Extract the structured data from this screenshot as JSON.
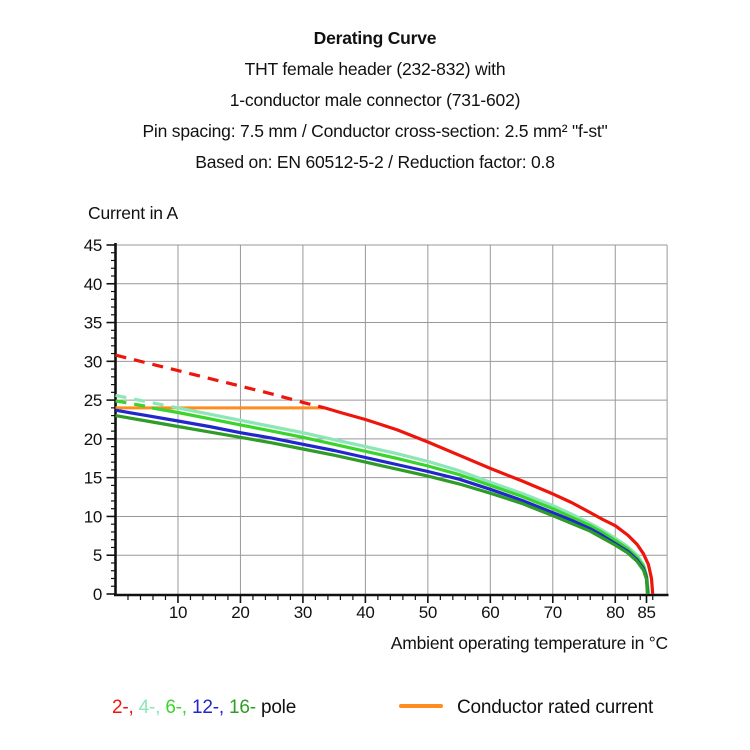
{
  "title_lines": [
    "Derating Curve",
    "THT female header (232-832) with",
    "1-conductor male connector (731-602)",
    "Pin spacing: 7.5 mm / Conductor cross-section: 2.5 mm² \"f-st\"",
    "Based on: EN 60512-5-2 / Reduction factor: 0.8"
  ],
  "chart_data": {
    "type": "line",
    "title": "Derating Curve",
    "ylabel": "Current in A",
    "xlabel": "Ambient operating temperature in °C",
    "x_ticks": [
      10,
      20,
      30,
      40,
      50,
      60,
      70,
      80,
      85
    ],
    "y_ticks": [
      0,
      5,
      10,
      15,
      20,
      25,
      30,
      35,
      40,
      45
    ],
    "xlim": [
      0,
      88.3
    ],
    "ylim": [
      0,
      45
    ],
    "grid": true,
    "grid_color": "#999999",
    "rated_current": {
      "value": 24,
      "x_from": 0,
      "x_to": 33.5,
      "color": "#ff8d1e",
      "label": "Conductor rated current"
    },
    "series": [
      {
        "name": "2-pole",
        "color": "#ee150c",
        "dashed_until": 33.5,
        "points": [
          [
            0,
            30.8
          ],
          [
            5,
            29.8
          ],
          [
            10,
            28.8
          ],
          [
            15,
            27.8
          ],
          [
            20,
            26.8
          ],
          [
            25,
            25.8
          ],
          [
            30,
            24.7
          ],
          [
            33.5,
            24
          ],
          [
            36,
            23.4
          ],
          [
            40,
            22.5
          ],
          [
            45,
            21.2
          ],
          [
            50,
            19.6
          ],
          [
            55,
            17.9
          ],
          [
            60,
            16.2
          ],
          [
            65,
            14.6
          ],
          [
            70,
            12.9
          ],
          [
            73,
            11.8
          ],
          [
            76,
            10.5
          ],
          [
            78,
            9.6
          ],
          [
            80,
            8.8
          ],
          [
            82,
            7.6
          ],
          [
            83.5,
            6.4
          ],
          [
            84.5,
            5.2
          ],
          [
            85.3,
            3.8
          ],
          [
            85.8,
            2.0
          ],
          [
            86,
            0
          ]
        ]
      },
      {
        "name": "4-pole",
        "color": "#8ce6b8",
        "dashed_until": 10,
        "points": [
          [
            0,
            25.6
          ],
          [
            5,
            24.8
          ],
          [
            10,
            24.0
          ],
          [
            15,
            23.2
          ],
          [
            20,
            22.4
          ],
          [
            25,
            21.6
          ],
          [
            30,
            20.8
          ],
          [
            35,
            19.9
          ],
          [
            40,
            19.0
          ],
          [
            45,
            18.1
          ],
          [
            50,
            17.1
          ],
          [
            55,
            15.9
          ],
          [
            60,
            14.4
          ],
          [
            65,
            13.0
          ],
          [
            70,
            11.4
          ],
          [
            73,
            10.3
          ],
          [
            76,
            9.1
          ],
          [
            78,
            8.2
          ],
          [
            80,
            7.2
          ],
          [
            82,
            6.1
          ],
          [
            83.5,
            5.0
          ],
          [
            84.5,
            3.8
          ],
          [
            85,
            2.5
          ],
          [
            85.35,
            0
          ]
        ]
      },
      {
        "name": "6-pole",
        "color": "#3bd42c",
        "dashed_until": 5.8,
        "points": [
          [
            0,
            24.9
          ],
          [
            5,
            24.2
          ],
          [
            5.8,
            24.0
          ],
          [
            10,
            23.4
          ],
          [
            15,
            22.6
          ],
          [
            20,
            21.8
          ],
          [
            25,
            21.0
          ],
          [
            30,
            20.2
          ],
          [
            35,
            19.3
          ],
          [
            40,
            18.4
          ],
          [
            45,
            17.5
          ],
          [
            50,
            16.5
          ],
          [
            55,
            15.4
          ],
          [
            60,
            14.0
          ],
          [
            65,
            12.6
          ],
          [
            70,
            11.0
          ],
          [
            73,
            9.9
          ],
          [
            76,
            8.8
          ],
          [
            78,
            7.9
          ],
          [
            80,
            6.9
          ],
          [
            82,
            5.8
          ],
          [
            83.5,
            4.7
          ],
          [
            84.5,
            3.6
          ],
          [
            85,
            2.3
          ],
          [
            85.28,
            0
          ]
        ]
      },
      {
        "name": "12-pole",
        "color": "#2126cd",
        "dashed_until": 0,
        "points": [
          [
            0,
            23.7
          ],
          [
            5,
            23.0
          ],
          [
            10,
            22.3
          ],
          [
            15,
            21.6
          ],
          [
            20,
            20.8
          ],
          [
            25,
            20.1
          ],
          [
            30,
            19.3
          ],
          [
            35,
            18.5
          ],
          [
            40,
            17.6
          ],
          [
            45,
            16.7
          ],
          [
            50,
            15.8
          ],
          [
            55,
            14.8
          ],
          [
            60,
            13.5
          ],
          [
            65,
            12.1
          ],
          [
            70,
            10.5
          ],
          [
            73,
            9.5
          ],
          [
            76,
            8.4
          ],
          [
            78,
            7.5
          ],
          [
            80,
            6.5
          ],
          [
            82,
            5.5
          ],
          [
            83.5,
            4.4
          ],
          [
            84.5,
            3.3
          ],
          [
            85,
            2.1
          ],
          [
            85.2,
            0
          ]
        ]
      },
      {
        "name": "16-pole",
        "color": "#2e9c26",
        "dashed_until": 0,
        "points": [
          [
            0,
            23.0
          ],
          [
            5,
            22.3
          ],
          [
            10,
            21.6
          ],
          [
            15,
            20.9
          ],
          [
            20,
            20.2
          ],
          [
            25,
            19.5
          ],
          [
            30,
            18.7
          ],
          [
            35,
            17.9
          ],
          [
            40,
            17.0
          ],
          [
            45,
            16.1
          ],
          [
            50,
            15.2
          ],
          [
            55,
            14.2
          ],
          [
            60,
            13.0
          ],
          [
            65,
            11.7
          ],
          [
            70,
            10.1
          ],
          [
            73,
            9.1
          ],
          [
            76,
            8.1
          ],
          [
            78,
            7.2
          ],
          [
            80,
            6.3
          ],
          [
            82,
            5.3
          ],
          [
            83.5,
            4.2
          ],
          [
            84.5,
            3.1
          ],
          [
            85,
            1.9
          ],
          [
            85.15,
            0
          ]
        ]
      }
    ]
  },
  "legend": {
    "poles": [
      {
        "label": "2-,",
        "color": "#ee150c"
      },
      {
        "label": "4-,",
        "color": "#8ce6b8"
      },
      {
        "label": "6-,",
        "color": "#3bd42c"
      },
      {
        "label": "12-,",
        "color": "#2126cd"
      },
      {
        "label": "16-",
        "color": "#2e9c26"
      }
    ],
    "poles_suffix": "pole",
    "rated_label": "Conductor rated current"
  }
}
